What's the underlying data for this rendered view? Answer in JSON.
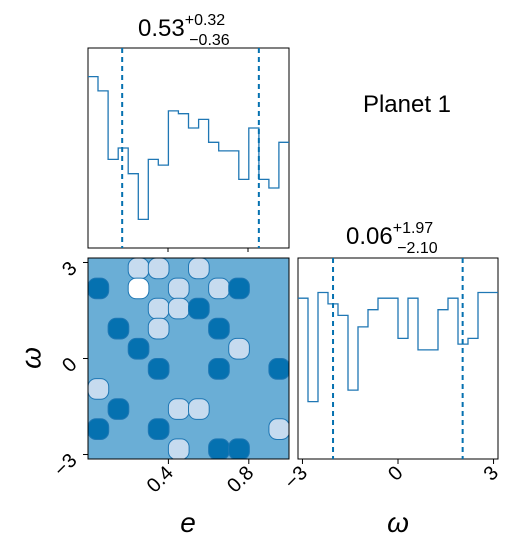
{
  "colors": {
    "line": "#1f77b4",
    "dark": "#0571b0",
    "mid": "#6aaed6",
    "light": "#c6dbef",
    "white": "#ffffff"
  },
  "title": "Planet 1",
  "chart_data": [
    {
      "type": "histogram",
      "panel": "e",
      "title_value": "0.53",
      "title_plus": "+0.32",
      "title_minus": "−0.36",
      "xlim": [
        0.0,
        1.0
      ],
      "bin_edges": [
        0.0,
        0.05,
        0.1,
        0.15,
        0.2,
        0.25,
        0.3,
        0.35,
        0.4,
        0.45,
        0.5,
        0.55,
        0.6,
        0.65,
        0.7,
        0.75,
        0.8,
        0.85,
        0.9,
        0.95,
        1.0
      ],
      "counts": [
        60,
        55,
        31,
        35,
        26,
        10,
        31,
        29,
        48,
        47,
        42,
        45,
        37,
        34,
        34,
        24,
        42,
        24,
        21,
        37
      ],
      "ylim": [
        0,
        70
      ],
      "quantiles": [
        0.17,
        0.85
      ]
    },
    {
      "type": "heatmap",
      "panel": "e-omega",
      "xlim": [
        0.0,
        1.0
      ],
      "ylim": [
        -3.14,
        3.14
      ],
      "xticks": [
        0.4,
        0.8
      ],
      "xtick_labels": [
        "0.4",
        "0.8"
      ],
      "yticks": [
        -3,
        0,
        3
      ],
      "ytick_labels": [
        "−3",
        "0",
        "3"
      ],
      "xlabel": "e",
      "ylabel": "ω",
      "ncols": 10,
      "nrows": 10,
      "levels": [
        [
          1,
          1,
          2,
          2,
          1,
          2,
          1,
          1,
          1,
          1
        ],
        [
          0,
          1,
          3,
          1,
          2,
          1,
          2,
          0,
          1,
          1
        ],
        [
          1,
          1,
          1,
          2,
          2,
          0,
          1,
          1,
          1,
          1
        ],
        [
          1,
          0,
          1,
          2,
          1,
          1,
          0,
          1,
          1,
          1
        ],
        [
          1,
          1,
          0,
          1,
          1,
          1,
          1,
          2,
          1,
          1
        ],
        [
          1,
          1,
          1,
          0,
          1,
          1,
          0,
          1,
          1,
          0
        ],
        [
          2,
          1,
          1,
          1,
          1,
          1,
          1,
          1,
          1,
          1
        ],
        [
          1,
          0,
          1,
          1,
          2,
          2,
          1,
          1,
          1,
          1
        ],
        [
          0,
          1,
          1,
          0,
          1,
          1,
          1,
          1,
          1,
          2
        ],
        [
          1,
          1,
          1,
          1,
          2,
          1,
          0,
          0,
          1,
          1
        ]
      ]
    },
    {
      "type": "histogram",
      "panel": "omega",
      "title_value": "0.06",
      "title_plus": "+1.97",
      "title_minus": "−2.10",
      "xlim": [
        -3.14,
        3.14
      ],
      "xticks": [
        -3,
        0,
        3
      ],
      "xtick_labels": [
        "−3",
        "0",
        "3"
      ],
      "xlabel": "ω",
      "bin_edges": [
        -3.14,
        -2.826,
        -2.512,
        -2.198,
        -1.884,
        -1.57,
        -1.256,
        -0.942,
        -0.628,
        -0.314,
        0.0,
        0.314,
        0.628,
        0.942,
        1.256,
        1.57,
        1.884,
        2.198,
        2.512,
        2.826,
        3.14
      ],
      "counts": [
        28,
        10,
        29,
        27,
        25,
        12,
        23,
        26,
        28,
        28,
        21,
        28,
        19,
        19,
        26,
        28,
        20,
        21,
        29,
        29
      ],
      "ylim": [
        0,
        35
      ],
      "quantiles": [
        -2.04,
        2.03
      ]
    }
  ]
}
